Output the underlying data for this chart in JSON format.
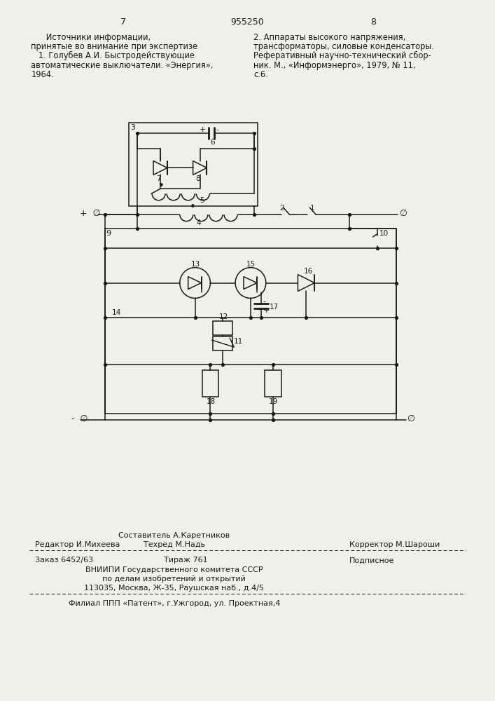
{
  "page_number_left": "7",
  "page_number_center": "955250",
  "page_number_right": "8",
  "text_left_col": [
    "      Источники информации,",
    "принятые во внимание при экспертизе",
    "   1. Голубев А.И. Быстродействующие",
    "автоматические выключатели. «Энергия»,",
    "1964."
  ],
  "text_right_col": [
    "2. Аппараты высокого напряжения,",
    "трансформаторы, силовые конденсаторы.",
    "Реферативный научно-технический сбор-",
    "ник. М., «Информэнерго», 1979, № 11,",
    "с.6."
  ],
  "bottom_composer": "Составитель А.Каретников",
  "bottom_editor": "Редактор И.Михеева",
  "bottom_tech": "Техред М.Надь",
  "bottom_corrector": "Корректор М.Шароши",
  "bottom_order": "Заказ 6452/63",
  "bottom_circulation": "Тираж 761",
  "bottom_subscription": "Подписное",
  "bottom_org1": "ВНИИПИ Государственного комитета СССР",
  "bottom_org2": "по делам изобретений и открытий",
  "bottom_address": "113035, Москва, Ж-35, Раушская наб., д.4/5",
  "bottom_filial": "Филиал ППП «Патент», г.Ужгород, ул. Проектная,4",
  "bg_color": "#f0efea",
  "line_color": "#1a1a1a",
  "text_color": "#1a1a1a"
}
